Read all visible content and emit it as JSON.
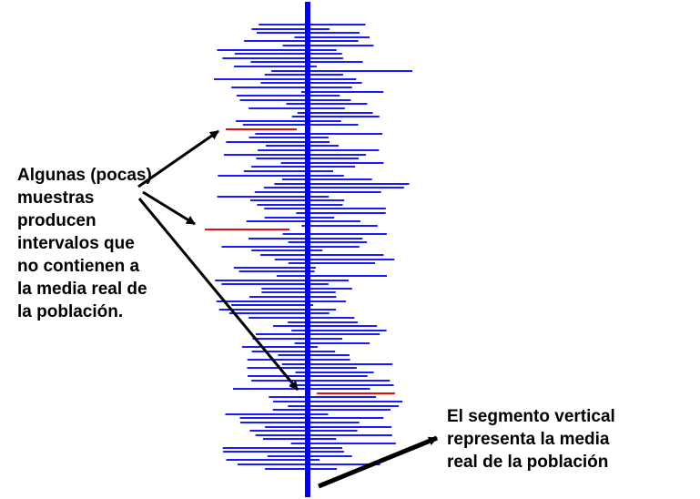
{
  "colors": {
    "interval": "#1a1aff",
    "miss": "#e01010",
    "mean_line": "#0000ee",
    "arrow": "#000000",
    "background": "#ffffff"
  },
  "annotations": {
    "left": [
      "Algunas (pocas)",
      "muestras",
      "producen",
      "intervalos que",
      "no contienen a",
      "la media real de",
      "la población."
    ],
    "right": [
      "El segmento vertical",
      "representa la media",
      "real de la población"
    ]
  }
}
